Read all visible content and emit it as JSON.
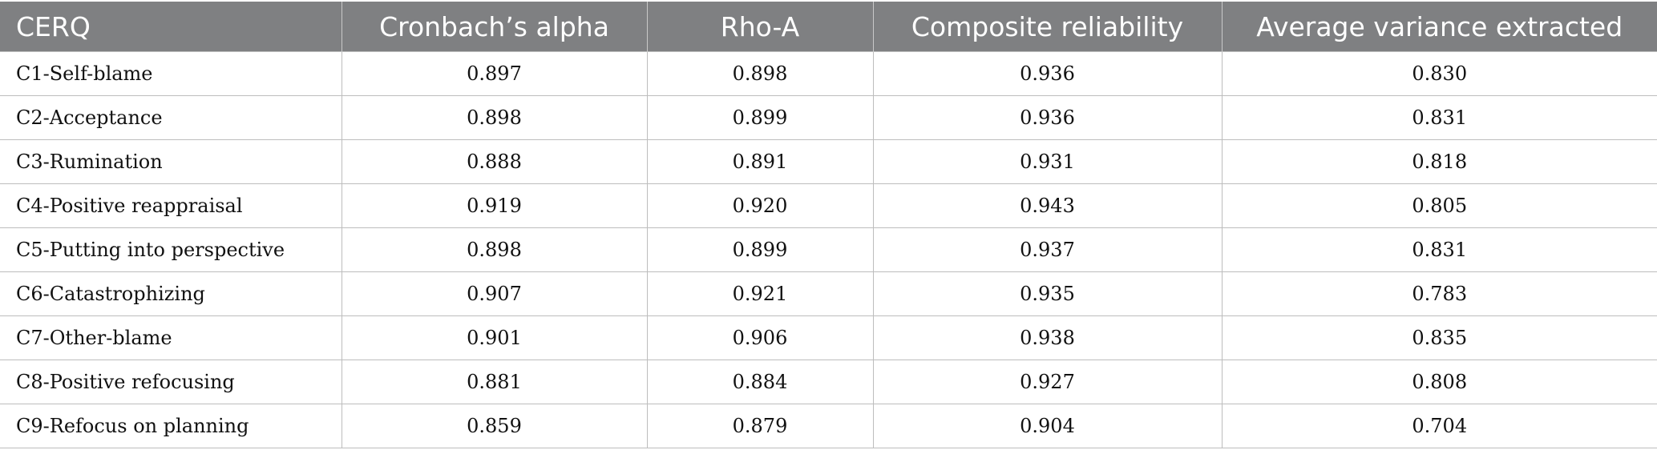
{
  "table": {
    "headers": [
      "CERQ",
      "Cronbach’s alpha",
      "Rho-A",
      "Composite reliability",
      "Average variance extracted"
    ],
    "rows": [
      [
        "C1-Self-blame",
        "0.897",
        "0.898",
        "0.936",
        "0.830"
      ],
      [
        "C2-Acceptance",
        "0.898",
        "0.899",
        "0.936",
        "0.831"
      ],
      [
        "C3-Rumination",
        "0.888",
        "0.891",
        "0.931",
        "0.818"
      ],
      [
        "C4-Positive reappraisal",
        "0.919",
        "0.920",
        "0.943",
        "0.805"
      ],
      [
        "C5-Putting into perspective",
        "0.898",
        "0.899",
        "0.937",
        "0.831"
      ],
      [
        "C6-Catastrophizing",
        "0.907",
        "0.921",
        "0.935",
        "0.783"
      ],
      [
        "C7-Other-blame",
        "0.901",
        "0.906",
        "0.938",
        "0.835"
      ],
      [
        "C8-Positive refocusing",
        "0.881",
        "0.884",
        "0.927",
        "0.808"
      ],
      [
        "C9-Refocus on planning",
        "0.859",
        "0.879",
        "0.904",
        "0.704"
      ]
    ]
  },
  "colors": {
    "header_background": "#7f8082",
    "header_text": "#ffffff",
    "grid_line": "#bdbdbd"
  }
}
